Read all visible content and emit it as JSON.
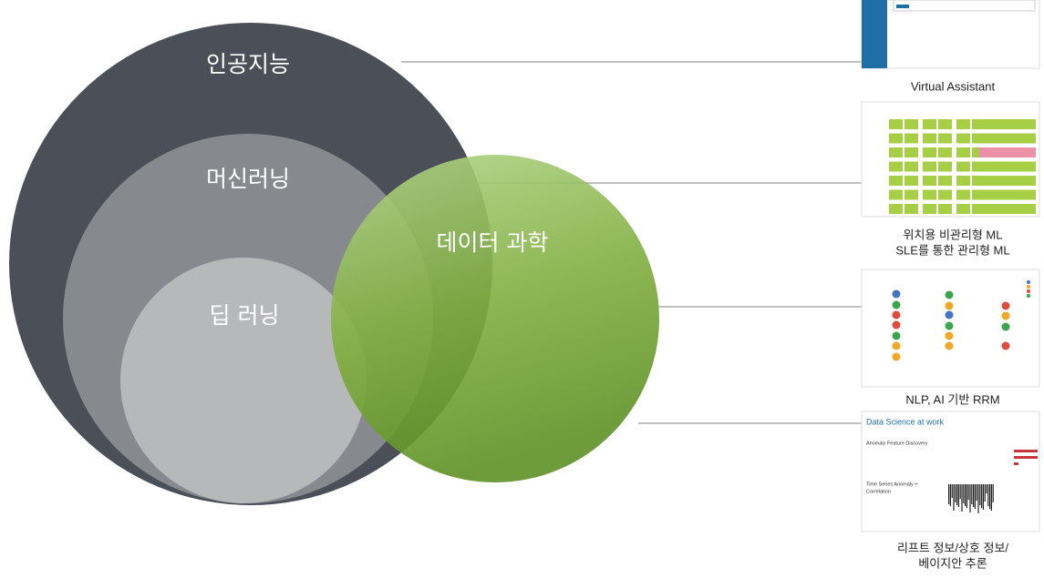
{
  "diagram": {
    "circles": {
      "ai": "인공지능",
      "ml": "머신러닝",
      "dl": "딥 러닝",
      "ds": "데이터 과학"
    },
    "examples": [
      {
        "caption": [
          "Virtual Assistant"
        ]
      },
      {
        "caption": [
          "위치용 비관리형 ML",
          "SLE를 통한 관리형 ML"
        ]
      },
      {
        "caption": [
          "NLP, AI 기반 RRM"
        ]
      },
      {
        "caption": [
          "리프트 정보/상호 정보/",
          "베이지안 추론"
        ],
        "thumbnail": {
          "title": "Data Science at work",
          "section_1": "Anomaly Feature Discovery",
          "section_2": [
            "Time Series Anomaly +",
            "Correlation"
          ]
        }
      }
    ]
  }
}
